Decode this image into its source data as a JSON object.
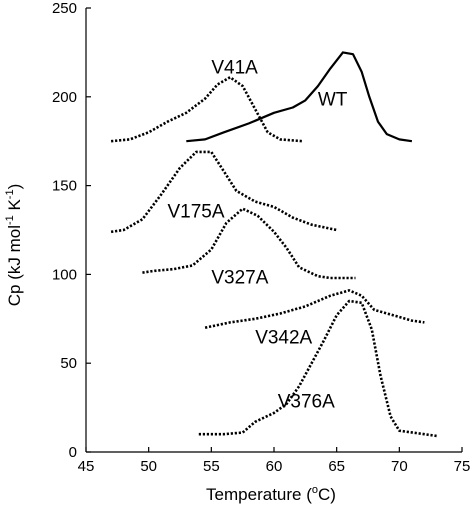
{
  "chart_data": {
    "type": "line",
    "xlabel": {
      "prefix": "Temperature (",
      "sup": "o",
      "suffix": "C)"
    },
    "ylabel": {
      "prefix": "Cp (kJ mol",
      "sup1": "-1",
      "mid": " K",
      "sup2": "-1",
      "suffix": ")"
    },
    "xlim": [
      45,
      75
    ],
    "ylim": [
      0,
      250
    ],
    "xticks": [
      45,
      50,
      55,
      60,
      65,
      70,
      75
    ],
    "yticks": [
      0,
      50,
      100,
      150,
      200,
      250
    ],
    "grid": false,
    "series": [
      {
        "name": "WT",
        "style": "solid",
        "label_at": [
          63.5,
          195
        ],
        "points": [
          [
            53,
            175
          ],
          [
            54.5,
            176
          ],
          [
            56,
            180
          ],
          [
            58,
            185
          ],
          [
            60,
            191
          ],
          [
            61.5,
            194
          ],
          [
            62.5,
            198
          ],
          [
            63.5,
            206
          ],
          [
            64.5,
            216
          ],
          [
            65.5,
            225
          ],
          [
            66.3,
            224
          ],
          [
            67,
            214
          ],
          [
            67.6,
            200
          ],
          [
            68.3,
            186
          ],
          [
            69,
            179
          ],
          [
            70,
            176
          ],
          [
            71,
            175
          ]
        ]
      },
      {
        "name": "V41A",
        "style": "dotted",
        "label_at": [
          55,
          213
        ],
        "points": [
          [
            47,
            175
          ],
          [
            48.5,
            176
          ],
          [
            50,
            180
          ],
          [
            51.5,
            186
          ],
          [
            53,
            191
          ],
          [
            54.5,
            199
          ],
          [
            55.5,
            207
          ],
          [
            56.5,
            211
          ],
          [
            57.5,
            206
          ],
          [
            58.5,
            193
          ],
          [
            59.5,
            180
          ],
          [
            60.5,
            176
          ],
          [
            62.3,
            175
          ]
        ]
      },
      {
        "name": "V175A",
        "style": "dotted",
        "label_at": [
          51.5,
          132
        ],
        "points": [
          [
            47,
            124
          ],
          [
            48,
            125
          ],
          [
            49.5,
            131
          ],
          [
            51,
            145
          ],
          [
            52.5,
            160
          ],
          [
            53.8,
            169
          ],
          [
            55,
            169
          ],
          [
            56,
            158
          ],
          [
            57,
            147
          ],
          [
            58.5,
            141
          ],
          [
            60,
            138
          ],
          [
            61.5,
            132
          ],
          [
            63,
            128
          ],
          [
            65,
            125
          ]
        ]
      },
      {
        "name": "V327A",
        "style": "dotted",
        "label_at": [
          55,
          95
        ],
        "points": [
          [
            49.5,
            101
          ],
          [
            50.5,
            102
          ],
          [
            52,
            103
          ],
          [
            53.5,
            105
          ],
          [
            55,
            114
          ],
          [
            56.2,
            129
          ],
          [
            57.5,
            137
          ],
          [
            58.7,
            133
          ],
          [
            60,
            124
          ],
          [
            61,
            115
          ],
          [
            62,
            104
          ],
          [
            63.5,
            99
          ],
          [
            64.5,
            98
          ],
          [
            66.5,
            98
          ]
        ]
      },
      {
        "name": "V342A",
        "style": "dotted",
        "label_at": [
          58.5,
          61
        ],
        "points": [
          [
            54.5,
            70
          ],
          [
            56.5,
            73
          ],
          [
            58.5,
            75
          ],
          [
            60.5,
            78
          ],
          [
            62.5,
            82
          ],
          [
            64.5,
            88
          ],
          [
            66,
            91
          ],
          [
            67,
            88
          ],
          [
            68,
            80
          ],
          [
            69.5,
            77
          ],
          [
            71,
            74
          ],
          [
            72,
            73
          ]
        ]
      },
      {
        "name": "V376A",
        "style": "dotted",
        "label_at": [
          60.3,
          25
        ],
        "points": [
          [
            54,
            10
          ],
          [
            56,
            10
          ],
          [
            57.5,
            11
          ],
          [
            58.5,
            17
          ],
          [
            60,
            22
          ],
          [
            61,
            27
          ],
          [
            62,
            37
          ],
          [
            63,
            50
          ],
          [
            64,
            63
          ],
          [
            65,
            77
          ],
          [
            66,
            85
          ],
          [
            67,
            84
          ],
          [
            67.8,
            69
          ],
          [
            68.5,
            43
          ],
          [
            69.3,
            20
          ],
          [
            70,
            12
          ],
          [
            72,
            10
          ],
          [
            73,
            9
          ]
        ]
      }
    ]
  }
}
